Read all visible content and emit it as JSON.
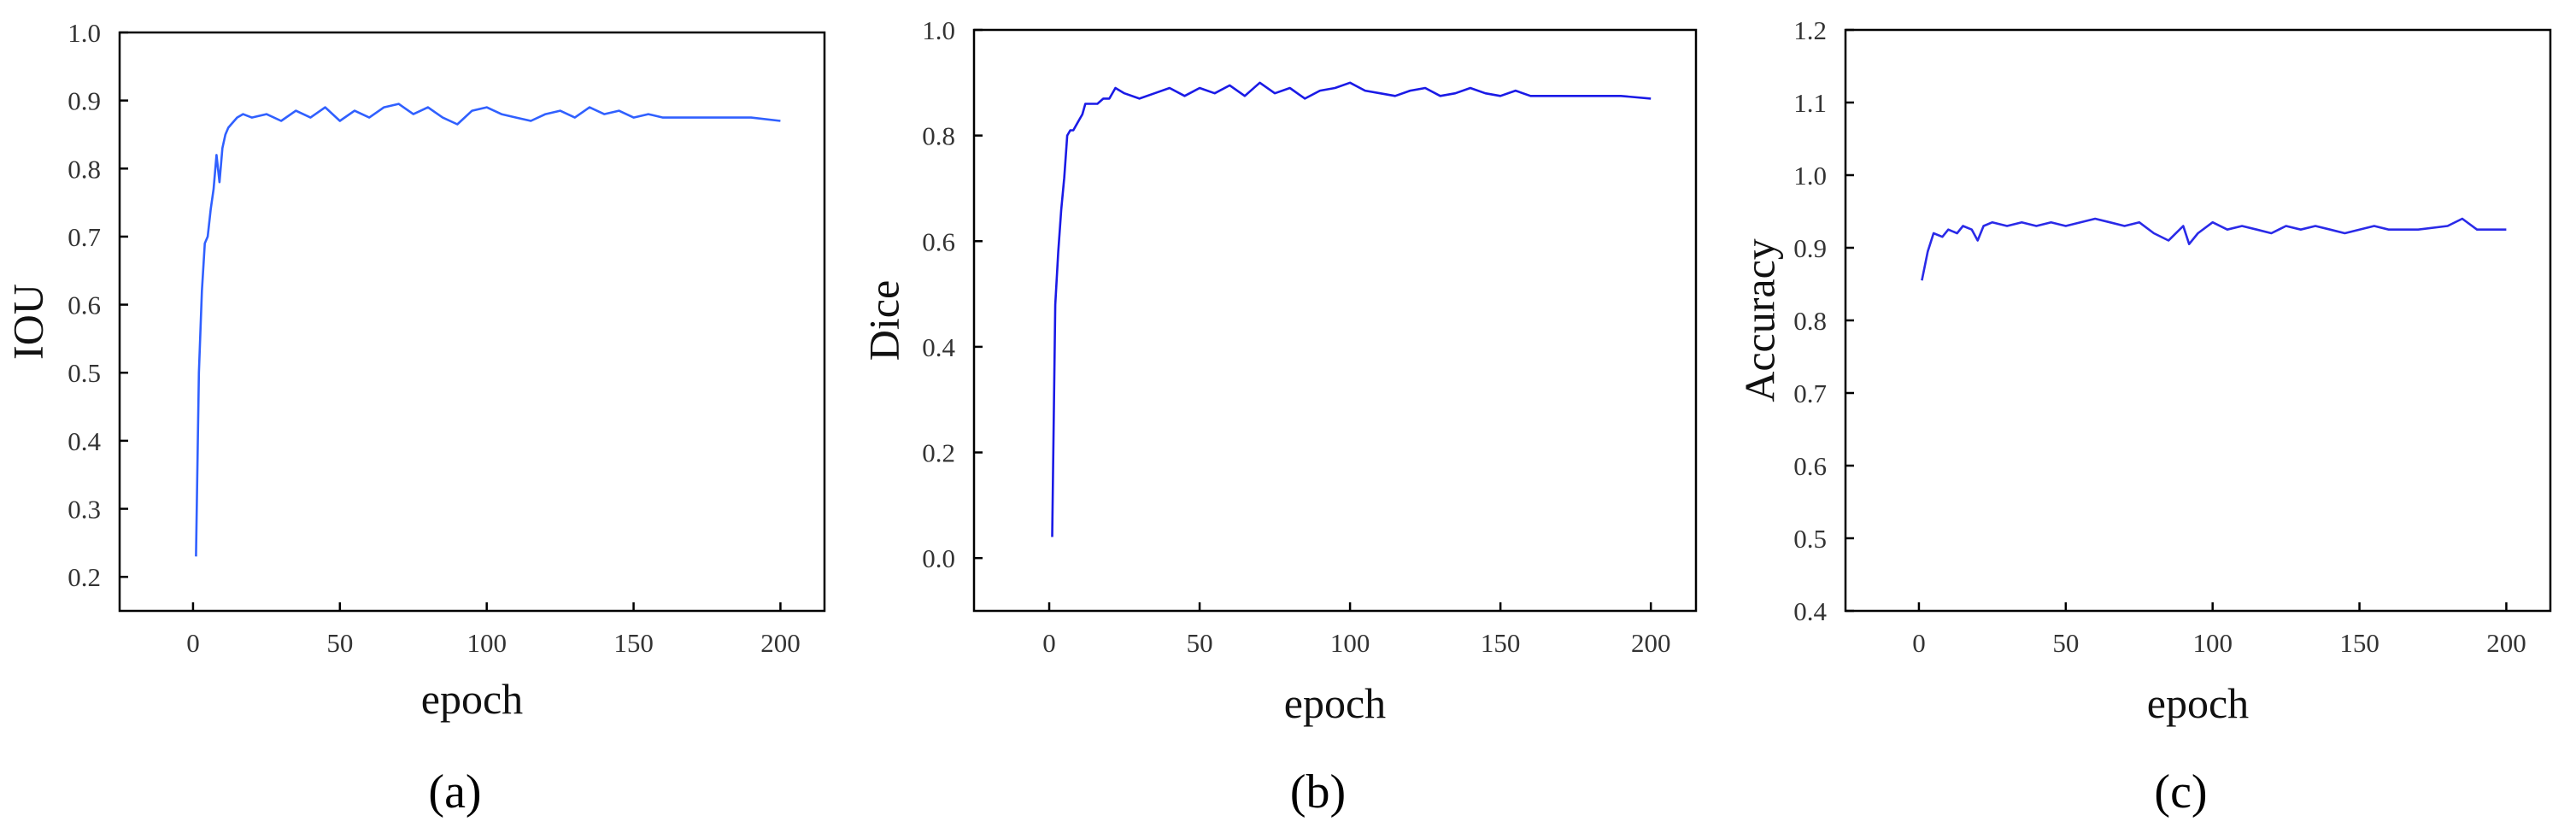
{
  "colors": {
    "line_a": "#3060ff",
    "line_b": "#1a1ae6",
    "line_c": "#2a2ae8"
  },
  "chart_data": [
    {
      "type": "line",
      "panel_label": "(a)",
      "xlabel": "epoch",
      "ylabel": "IOU",
      "xlim": [
        -25,
        215
      ],
      "ylim": [
        0.15,
        1.0
      ],
      "xticks": [
        0,
        50,
        100,
        150,
        200
      ],
      "yticks": [
        0.2,
        0.3,
        0.4,
        0.5,
        0.6,
        0.7,
        0.8,
        0.9,
        1.0
      ],
      "x": [
        1,
        2,
        3,
        4,
        5,
        6,
        7,
        8,
        9,
        10,
        11,
        12,
        13,
        14,
        15,
        17,
        20,
        25,
        30,
        35,
        40,
        45,
        50,
        55,
        60,
        65,
        70,
        75,
        80,
        85,
        90,
        95,
        100,
        105,
        110,
        115,
        120,
        125,
        130,
        135,
        140,
        145,
        150,
        155,
        160,
        170,
        180,
        190,
        200
      ],
      "series": [
        {
          "values": [
            0.23,
            0.5,
            0.62,
            0.69,
            0.7,
            0.74,
            0.77,
            0.82,
            0.78,
            0.83,
            0.85,
            0.86,
            0.865,
            0.87,
            0.875,
            0.88,
            0.875,
            0.88,
            0.87,
            0.885,
            0.875,
            0.89,
            0.87,
            0.885,
            0.875,
            0.89,
            0.895,
            0.88,
            0.89,
            0.875,
            0.865,
            0.885,
            0.89,
            0.88,
            0.875,
            0.87,
            0.88,
            0.885,
            0.875,
            0.89,
            0.88,
            0.885,
            0.875,
            0.88,
            0.875,
            0.875,
            0.875,
            0.875,
            0.87
          ]
        }
      ]
    },
    {
      "type": "line",
      "panel_label": "(b)",
      "xlabel": "epoch",
      "ylabel": "Dice",
      "xlim": [
        -25,
        215
      ],
      "ylim": [
        -0.1,
        1.0
      ],
      "xticks": [
        0,
        50,
        100,
        150,
        200
      ],
      "yticks": [
        0.0,
        0.2,
        0.4,
        0.6,
        0.8,
        1.0
      ],
      "x": [
        1,
        2,
        3,
        4,
        5,
        6,
        7,
        8,
        9,
        10,
        11,
        12,
        14,
        16,
        18,
        20,
        22,
        25,
        30,
        35,
        40,
        45,
        50,
        55,
        60,
        65,
        70,
        75,
        80,
        85,
        90,
        95,
        100,
        105,
        110,
        115,
        120,
        125,
        130,
        135,
        140,
        145,
        150,
        155,
        160,
        170,
        180,
        190,
        200
      ],
      "series": [
        {
          "values": [
            0.04,
            0.48,
            0.58,
            0.66,
            0.72,
            0.8,
            0.81,
            0.81,
            0.82,
            0.83,
            0.84,
            0.86,
            0.86,
            0.86,
            0.87,
            0.87,
            0.89,
            0.88,
            0.87,
            0.88,
            0.89,
            0.875,
            0.89,
            0.88,
            0.895,
            0.875,
            0.9,
            0.88,
            0.89,
            0.87,
            0.885,
            0.89,
            0.9,
            0.885,
            0.88,
            0.875,
            0.885,
            0.89,
            0.875,
            0.88,
            0.89,
            0.88,
            0.875,
            0.885,
            0.875,
            0.875,
            0.875,
            0.875,
            0.87
          ]
        }
      ]
    },
    {
      "type": "line",
      "panel_label": "(c)",
      "xlabel": "epoch",
      "ylabel": "Accuracy",
      "xlim": [
        -25,
        215
      ],
      "ylim": [
        0.4,
        1.2
      ],
      "xticks": [
        0,
        50,
        100,
        150,
        200
      ],
      "yticks": [
        0.4,
        0.5,
        0.6,
        0.7,
        0.8,
        0.9,
        1.0,
        1.1,
        1.2
      ],
      "x": [
        1,
        3,
        5,
        8,
        10,
        13,
        15,
        18,
        20,
        22,
        25,
        30,
        35,
        40,
        45,
        50,
        55,
        60,
        65,
        70,
        75,
        80,
        85,
        90,
        92,
        95,
        100,
        105,
        110,
        115,
        120,
        125,
        130,
        135,
        140,
        145,
        150,
        155,
        160,
        170,
        180,
        185,
        190,
        200
      ],
      "series": [
        {
          "values": [
            0.855,
            0.895,
            0.92,
            0.915,
            0.925,
            0.92,
            0.93,
            0.925,
            0.91,
            0.93,
            0.935,
            0.93,
            0.935,
            0.93,
            0.935,
            0.93,
            0.935,
            0.94,
            0.935,
            0.93,
            0.935,
            0.92,
            0.91,
            0.93,
            0.905,
            0.92,
            0.935,
            0.925,
            0.93,
            0.925,
            0.92,
            0.93,
            0.925,
            0.93,
            0.925,
            0.92,
            0.925,
            0.93,
            0.925,
            0.925,
            0.93,
            0.94,
            0.925,
            0.925
          ]
        }
      ]
    }
  ]
}
